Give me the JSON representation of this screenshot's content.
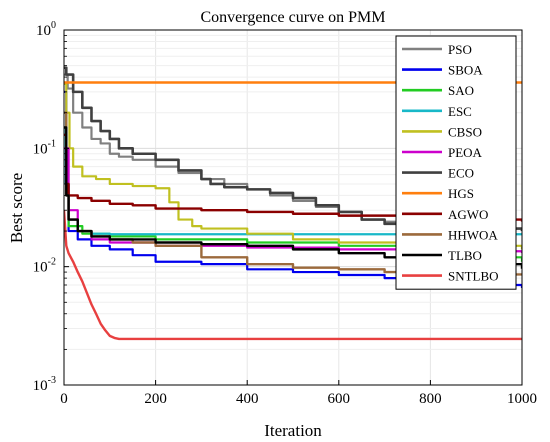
{
  "chart_data": {
    "type": "line",
    "title": "Convergence curve on PMM",
    "xlabel": "Iteration",
    "ylabel": "Best score",
    "xlim": [
      0,
      1000
    ],
    "ylim": [
      0.001,
      1
    ],
    "y_scale": "log",
    "grid": true,
    "legend_position": "top-right",
    "x_ticks": [
      0,
      200,
      400,
      600,
      800,
      1000
    ],
    "y_ticks": [
      {
        "value": 0.001,
        "base": "10",
        "exp": "-3"
      },
      {
        "value": 0.01,
        "base": "10",
        "exp": "-2"
      },
      {
        "value": 0.1,
        "base": "10",
        "exp": "-1"
      },
      {
        "value": 1,
        "base": "10",
        "exp": "0"
      }
    ],
    "series": [
      {
        "name": "PSO",
        "color": "#808080",
        "width": 2.2,
        "step": true,
        "points": [
          [
            0,
            0.42
          ],
          [
            8,
            0.32
          ],
          [
            20,
            0.2
          ],
          [
            40,
            0.15
          ],
          [
            60,
            0.12
          ],
          [
            80,
            0.11
          ],
          [
            100,
            0.09
          ],
          [
            120,
            0.085
          ],
          [
            150,
            0.08
          ],
          [
            200,
            0.07
          ],
          [
            250,
            0.062
          ],
          [
            300,
            0.055
          ],
          [
            350,
            0.05
          ],
          [
            400,
            0.045
          ],
          [
            450,
            0.04
          ],
          [
            500,
            0.036
          ],
          [
            550,
            0.032
          ],
          [
            600,
            0.027
          ],
          [
            650,
            0.025
          ],
          [
            700,
            0.024
          ],
          [
            800,
            0.023
          ],
          [
            850,
            0.022
          ],
          [
            900,
            0.021
          ],
          [
            1000,
            0.02
          ]
        ]
      },
      {
        "name": "SBOA",
        "color": "#0000ee",
        "width": 2.2,
        "step": true,
        "points": [
          [
            0,
            0.3
          ],
          [
            5,
            0.05
          ],
          [
            10,
            0.02
          ],
          [
            30,
            0.017
          ],
          [
            60,
            0.015
          ],
          [
            100,
            0.014
          ],
          [
            150,
            0.0125
          ],
          [
            200,
            0.011
          ],
          [
            300,
            0.0105
          ],
          [
            400,
            0.0095
          ],
          [
            500,
            0.009
          ],
          [
            600,
            0.0085
          ],
          [
            700,
            0.008
          ],
          [
            800,
            0.0075
          ],
          [
            900,
            0.007
          ],
          [
            1000,
            0.0066
          ]
        ]
      },
      {
        "name": "SAO",
        "color": "#22cc22",
        "width": 2.2,
        "step": true,
        "points": [
          [
            0,
            0.2
          ],
          [
            5,
            0.04
          ],
          [
            10,
            0.022
          ],
          [
            40,
            0.019
          ],
          [
            100,
            0.018
          ],
          [
            200,
            0.017
          ],
          [
            400,
            0.016
          ],
          [
            600,
            0.015
          ],
          [
            800,
            0.0135
          ],
          [
            900,
            0.012
          ],
          [
            1000,
            0.011
          ]
        ]
      },
      {
        "name": "ESC",
        "color": "#18b8c8",
        "width": 2.2,
        "step": true,
        "points": [
          [
            0,
            0.15
          ],
          [
            4,
            0.05
          ],
          [
            10,
            0.025
          ],
          [
            30,
            0.02
          ],
          [
            60,
            0.019
          ],
          [
            100,
            0.0188
          ],
          [
            1000,
            0.0188
          ]
        ]
      },
      {
        "name": "CBSO",
        "color": "#c0c020",
        "width": 2.2,
        "step": true,
        "points": [
          [
            0,
            0.35
          ],
          [
            5,
            0.2
          ],
          [
            12,
            0.1
          ],
          [
            20,
            0.07
          ],
          [
            40,
            0.058
          ],
          [
            70,
            0.055
          ],
          [
            100,
            0.05
          ],
          [
            150,
            0.048
          ],
          [
            200,
            0.046
          ],
          [
            230,
            0.035
          ],
          [
            250,
            0.025
          ],
          [
            280,
            0.022
          ],
          [
            300,
            0.021
          ],
          [
            400,
            0.019
          ],
          [
            500,
            0.017
          ],
          [
            600,
            0.016
          ],
          [
            800,
            0.015
          ],
          [
            1000,
            0.014
          ]
        ]
      },
      {
        "name": "PEOA",
        "color": "#cc00cc",
        "width": 2.2,
        "step": true,
        "points": [
          [
            0,
            0.1
          ],
          [
            10,
            0.03
          ],
          [
            30,
            0.02
          ],
          [
            60,
            0.017
          ],
          [
            100,
            0.016
          ],
          [
            200,
            0.015
          ],
          [
            400,
            0.0145
          ],
          [
            600,
            0.014
          ],
          [
            800,
            0.0135
          ],
          [
            1000,
            0.013
          ]
        ]
      },
      {
        "name": "ECO",
        "color": "#404040",
        "width": 2.6,
        "step": true,
        "points": [
          [
            0,
            0.48
          ],
          [
            5,
            0.42
          ],
          [
            20,
            0.3
          ],
          [
            40,
            0.22
          ],
          [
            60,
            0.17
          ],
          [
            80,
            0.14
          ],
          [
            100,
            0.12
          ],
          [
            120,
            0.1
          ],
          [
            150,
            0.09
          ],
          [
            200,
            0.08
          ],
          [
            250,
            0.065
          ],
          [
            300,
            0.055
          ],
          [
            320,
            0.05
          ],
          [
            350,
            0.047
          ],
          [
            400,
            0.045
          ],
          [
            450,
            0.042
          ],
          [
            500,
            0.038
          ],
          [
            550,
            0.033
          ],
          [
            600,
            0.029
          ],
          [
            650,
            0.025
          ],
          [
            700,
            0.023
          ],
          [
            800,
            0.022
          ],
          [
            900,
            0.021
          ],
          [
            1000,
            0.02
          ]
        ]
      },
      {
        "name": "HGS",
        "color": "#ff7f0e",
        "width": 2.6,
        "step": true,
        "points": [
          [
            0,
            0.36
          ],
          [
            1000,
            0.36
          ]
        ]
      },
      {
        "name": "AGWO",
        "color": "#8b0000",
        "width": 2.4,
        "step": true,
        "points": [
          [
            0,
            0.13
          ],
          [
            5,
            0.05
          ],
          [
            10,
            0.04
          ],
          [
            30,
            0.038
          ],
          [
            60,
            0.036
          ],
          [
            100,
            0.034
          ],
          [
            150,
            0.033
          ],
          [
            200,
            0.031
          ],
          [
            300,
            0.03
          ],
          [
            400,
            0.029
          ],
          [
            500,
            0.028
          ],
          [
            600,
            0.027
          ],
          [
            700,
            0.027
          ],
          [
            800,
            0.026
          ],
          [
            900,
            0.026
          ],
          [
            950,
            0.025
          ],
          [
            1000,
            0.024
          ]
        ]
      },
      {
        "name": "HHWOA",
        "color": "#9c6a3c",
        "width": 2.4,
        "step": true,
        "points": [
          [
            0,
            0.2
          ],
          [
            5,
            0.04
          ],
          [
            10,
            0.025
          ],
          [
            30,
            0.02
          ],
          [
            60,
            0.018
          ],
          [
            100,
            0.017
          ],
          [
            150,
            0.016
          ],
          [
            200,
            0.015
          ],
          [
            300,
            0.012
          ],
          [
            400,
            0.0105
          ],
          [
            500,
            0.0098
          ],
          [
            600,
            0.0095
          ],
          [
            700,
            0.009
          ],
          [
            800,
            0.0088
          ],
          [
            900,
            0.0086
          ],
          [
            1000,
            0.0085
          ]
        ]
      },
      {
        "name": "TLBO",
        "color": "#000000",
        "width": 2.4,
        "step": true,
        "points": [
          [
            0,
            0.15
          ],
          [
            5,
            0.04
          ],
          [
            10,
            0.025
          ],
          [
            30,
            0.02
          ],
          [
            60,
            0.018
          ],
          [
            100,
            0.017
          ],
          [
            200,
            0.016
          ],
          [
            300,
            0.0155
          ],
          [
            400,
            0.015
          ],
          [
            500,
            0.014
          ],
          [
            600,
            0.013
          ],
          [
            700,
            0.012
          ],
          [
            800,
            0.0112
          ],
          [
            900,
            0.0105
          ],
          [
            1000,
            0.0096
          ]
        ]
      },
      {
        "name": "SNTLBO",
        "color": "#e84040",
        "width": 2.4,
        "step": false,
        "points": [
          [
            0,
            0.03
          ],
          [
            5,
            0.015
          ],
          [
            10,
            0.013
          ],
          [
            20,
            0.011
          ],
          [
            30,
            0.009
          ],
          [
            40,
            0.0075
          ],
          [
            50,
            0.006
          ],
          [
            60,
            0.0048
          ],
          [
            70,
            0.004
          ],
          [
            80,
            0.0033
          ],
          [
            90,
            0.0029
          ],
          [
            100,
            0.0026
          ],
          [
            110,
            0.0025
          ],
          [
            120,
            0.00245
          ],
          [
            1000,
            0.00245
          ]
        ]
      }
    ]
  }
}
